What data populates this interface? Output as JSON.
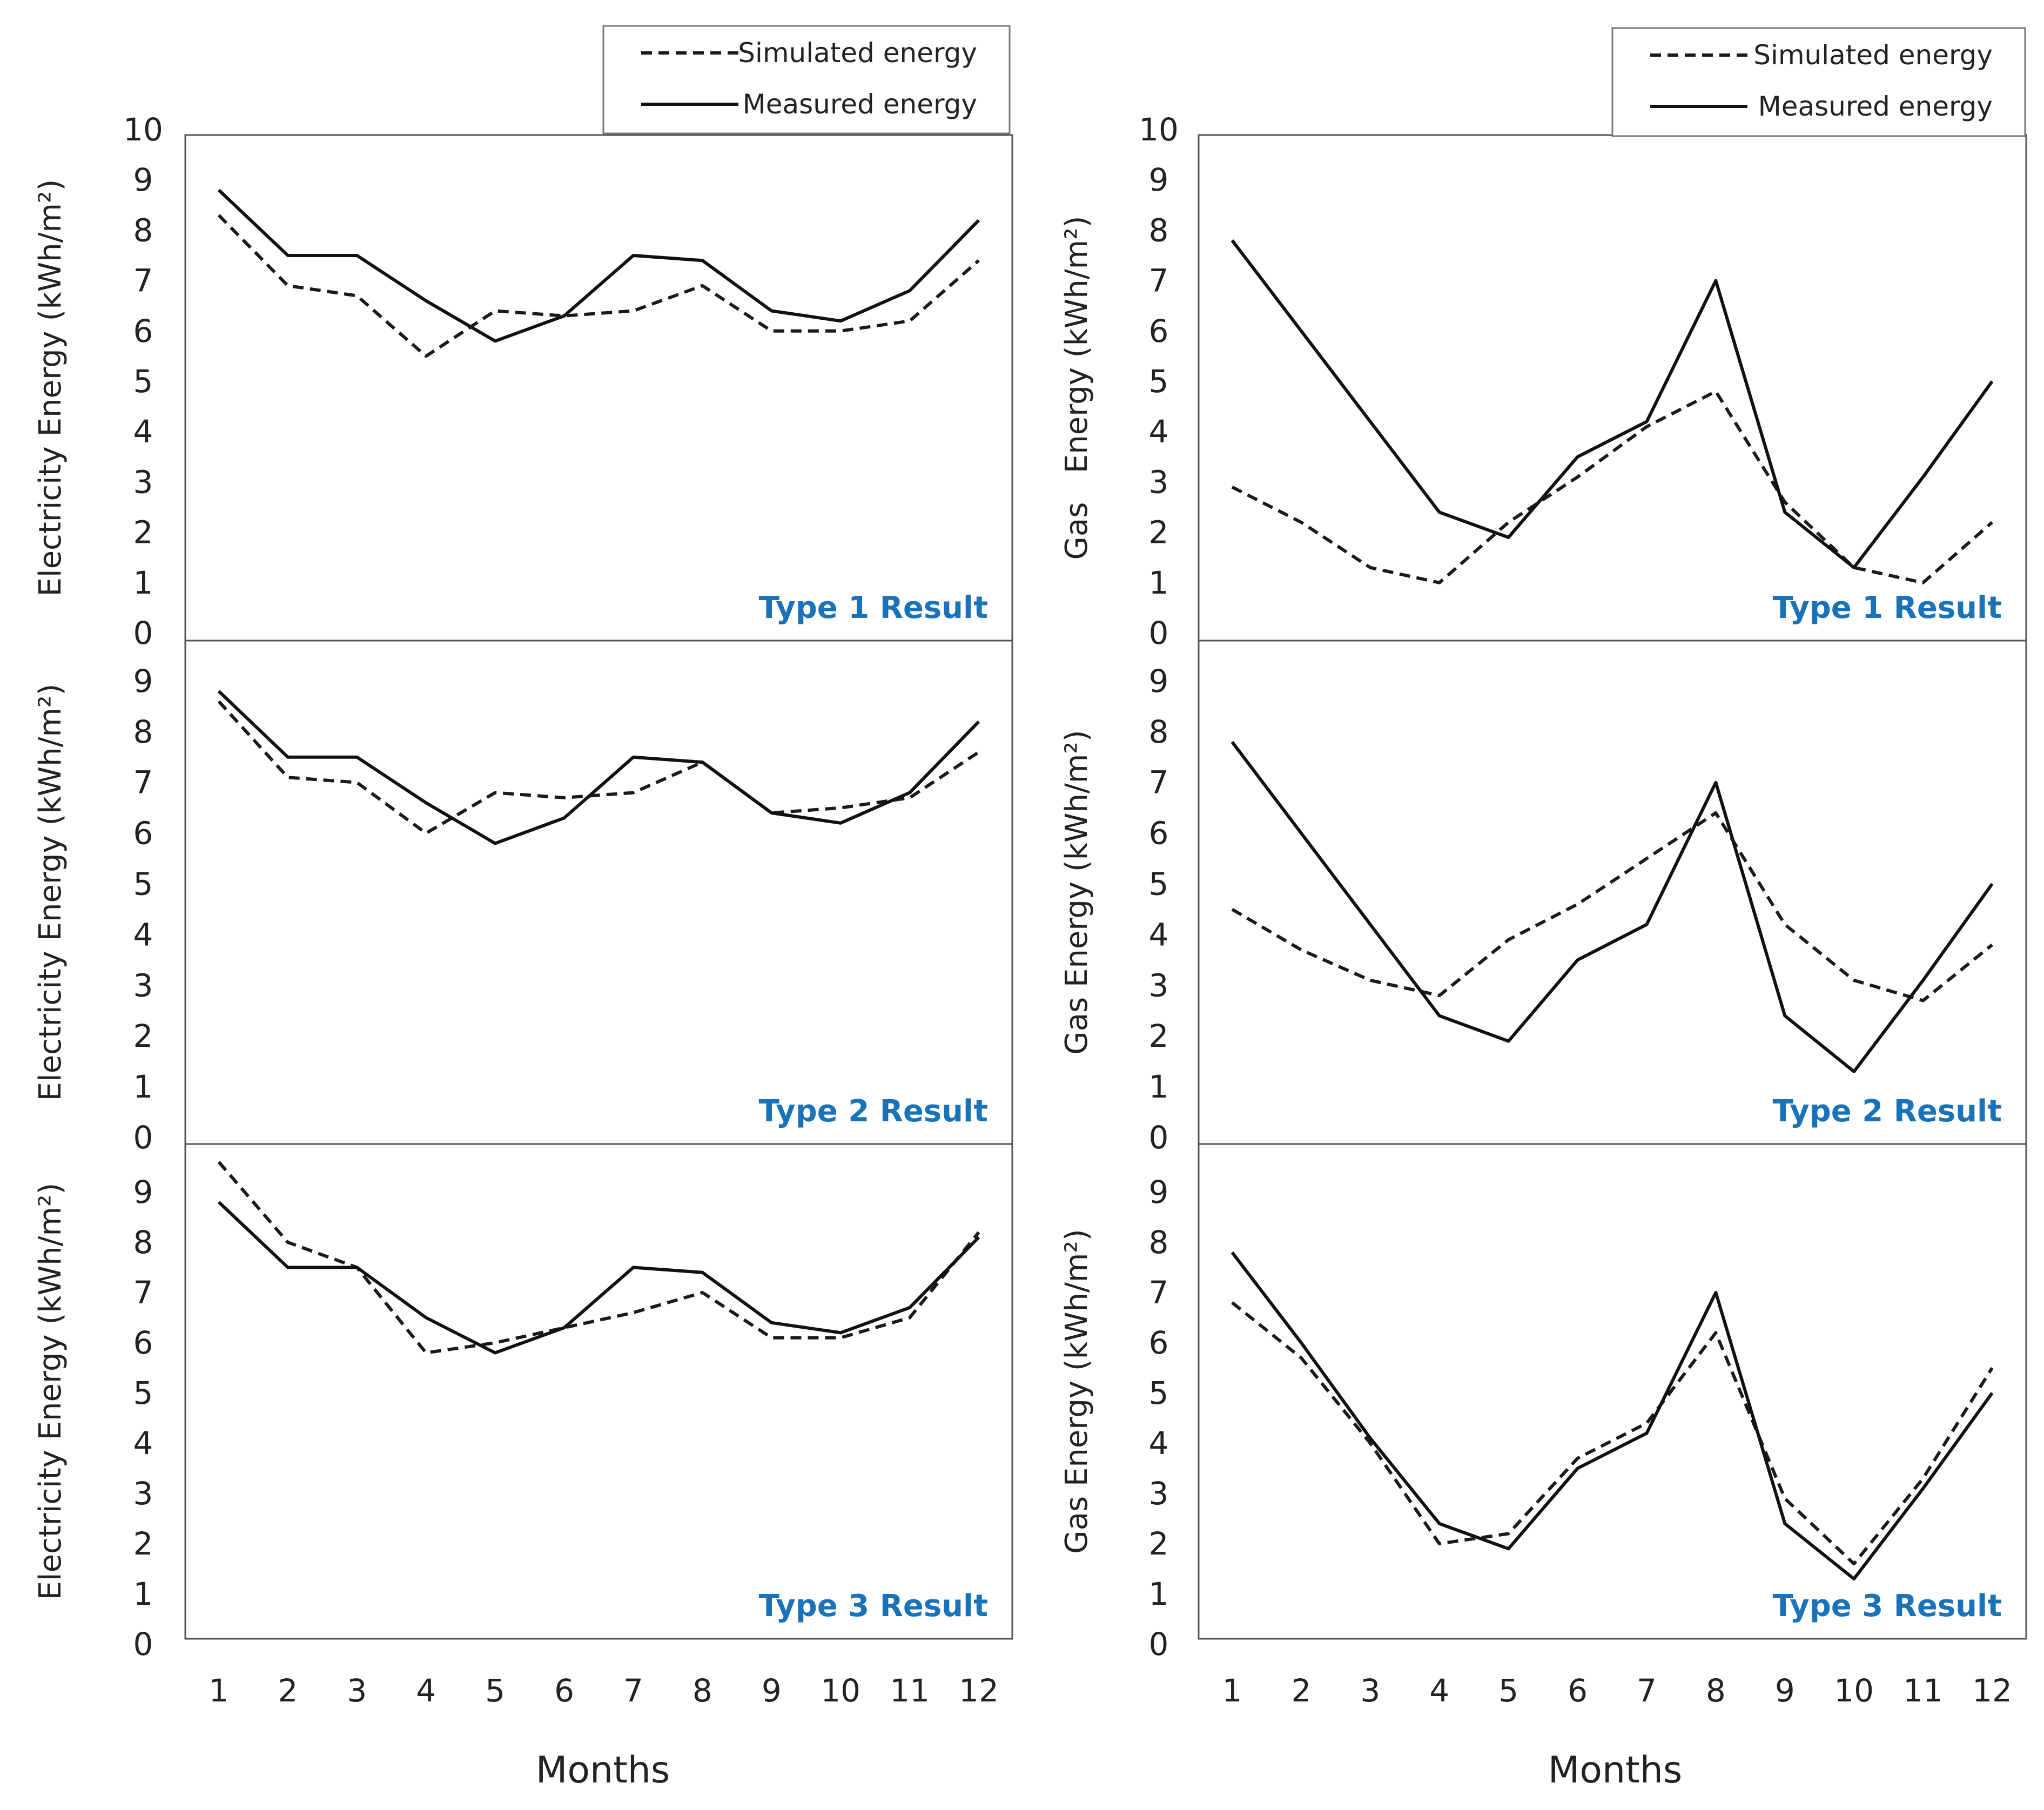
{
  "chart_data": [
    {
      "type": "line",
      "column": "left",
      "row": 1,
      "title": "Type 1 Result",
      "xlabel": "Months",
      "ylabel": "Electricity Energy (kWh/m²)",
      "ylim": [
        0,
        10
      ],
      "yticks": [
        "0",
        "1",
        "2",
        "3",
        "4",
        "5",
        "6",
        "7",
        "8",
        "9",
        "10"
      ],
      "x": [
        1,
        2,
        3,
        4,
        5,
        6,
        7,
        8,
        9,
        10,
        11,
        12
      ],
      "legend": {
        "position": "top-right",
        "simulated": "Simulated energy",
        "measured": "Measured energy"
      },
      "series": [
        {
          "name": "Simulated energy",
          "style": "dashed",
          "values": [
            8.3,
            6.9,
            6.7,
            5.5,
            6.4,
            6.3,
            6.4,
            6.9,
            6.0,
            6.0,
            6.2,
            7.4
          ]
        },
        {
          "name": "Measured energy",
          "style": "solid",
          "values": [
            8.8,
            7.5,
            7.5,
            6.6,
            5.8,
            6.3,
            7.5,
            7.4,
            6.4,
            6.2,
            6.8,
            8.2
          ]
        }
      ]
    },
    {
      "type": "line",
      "column": "left",
      "row": 2,
      "title": "Type 2 Result",
      "ylabel": "Electricity Energy (kWh/m²)",
      "ylim": [
        0,
        10
      ],
      "yticks": [
        "0",
        "1",
        "2",
        "3",
        "4",
        "5",
        "6",
        "7",
        "8",
        "9"
      ],
      "x": [
        1,
        2,
        3,
        4,
        5,
        6,
        7,
        8,
        9,
        10,
        11,
        12
      ],
      "series": [
        {
          "name": "Simulated energy",
          "style": "dashed",
          "values": [
            8.6,
            7.1,
            7.0,
            6.0,
            6.8,
            6.7,
            6.8,
            7.4,
            6.4,
            6.5,
            6.7,
            7.6
          ]
        },
        {
          "name": "Measured energy",
          "style": "solid",
          "values": [
            8.8,
            7.5,
            7.5,
            6.6,
            5.8,
            6.3,
            7.5,
            7.4,
            6.4,
            6.2,
            6.8,
            8.2
          ]
        }
      ]
    },
    {
      "type": "line",
      "column": "left",
      "row": 3,
      "title": "Type 3 Result",
      "ylabel": "Electricity Energy (kWh/m²)",
      "ylim": [
        0,
        10
      ],
      "yticks": [
        "0",
        "1",
        "2",
        "3",
        "4",
        "5",
        "6",
        "7",
        "8",
        "9"
      ],
      "xticks": [
        "1",
        "2",
        "3",
        "4",
        "5",
        "6",
        "7",
        "8",
        "9",
        "10",
        "11",
        "12"
      ],
      "x": [
        1,
        2,
        3,
        4,
        5,
        6,
        7,
        8,
        9,
        10,
        11,
        12
      ],
      "series": [
        {
          "name": "Simulated energy",
          "style": "dashed",
          "values": [
            9.6,
            8.0,
            7.5,
            5.8,
            6.0,
            6.3,
            6.6,
            7.0,
            6.1,
            6.1,
            6.5,
            8.2
          ]
        },
        {
          "name": "Measured energy",
          "style": "solid",
          "values": [
            8.8,
            7.5,
            7.5,
            6.5,
            5.8,
            6.3,
            7.5,
            7.4,
            6.4,
            6.2,
            6.7,
            8.1
          ]
        }
      ]
    },
    {
      "type": "line",
      "column": "right",
      "row": 1,
      "title": "Type 1 Result",
      "xlabel": "Months",
      "ylabel": "Gas   Energy (kWh/m²)",
      "ylim": [
        0,
        10
      ],
      "yticks": [
        "0",
        "1",
        "2",
        "3",
        "4",
        "5",
        "6",
        "7",
        "8",
        "9",
        "10"
      ],
      "x": [
        1,
        2,
        3,
        4,
        5,
        6,
        7,
        8,
        9,
        10,
        11,
        12
      ],
      "legend": {
        "position": "top-right",
        "simulated": "Simulated energy",
        "measured": "Measured energy"
      },
      "series": [
        {
          "name": "Simulated energy",
          "style": "dashed",
          "values": [
            2.9,
            2.2,
            1.3,
            1.0,
            2.2,
            3.1,
            4.1,
            4.8,
            2.6,
            1.3,
            1.0,
            2.2
          ]
        },
        {
          "name": "Measured energy",
          "style": "solid",
          "values": [
            7.8,
            6.0,
            4.2,
            2.4,
            1.9,
            3.5,
            4.2,
            7.0,
            2.4,
            1.3,
            3.1,
            5.0
          ]
        }
      ]
    },
    {
      "type": "line",
      "column": "right",
      "row": 2,
      "title": "Type 2 Result",
      "ylabel": "Gas Energy (kWh/m²)",
      "ylim": [
        0,
        10
      ],
      "yticks": [
        "0",
        "1",
        "2",
        "3",
        "4",
        "5",
        "6",
        "7",
        "8",
        "9"
      ],
      "x": [
        1,
        2,
        3,
        4,
        5,
        6,
        7,
        8,
        9,
        10,
        11,
        12
      ],
      "series": [
        {
          "name": "Simulated energy",
          "style": "dashed",
          "values": [
            4.5,
            3.7,
            3.1,
            2.8,
            3.9,
            4.6,
            5.5,
            6.4,
            4.2,
            3.1,
            2.7,
            3.8
          ]
        },
        {
          "name": "Measured energy",
          "style": "solid",
          "values": [
            7.8,
            6.0,
            4.2,
            2.4,
            1.9,
            3.5,
            4.2,
            7.0,
            2.4,
            1.3,
            3.1,
            5.0
          ]
        }
      ]
    },
    {
      "type": "line",
      "column": "right",
      "row": 3,
      "title": "Type 3 Result",
      "ylabel": "Gas Energy (kWh/m²)",
      "ylim": [
        0,
        10
      ],
      "yticks": [
        "0",
        "1",
        "2",
        "3",
        "4",
        "5",
        "6",
        "7",
        "8",
        "9"
      ],
      "xticks": [
        "1",
        "2",
        "3",
        "4",
        "5",
        "6",
        "7",
        "8",
        "9",
        "10",
        "11",
        "12"
      ],
      "x": [
        1,
        2,
        3,
        4,
        5,
        6,
        7,
        8,
        9,
        10,
        11,
        12
      ],
      "series": [
        {
          "name": "Simulated energy",
          "style": "dashed",
          "values": [
            6.8,
            5.7,
            4.0,
            2.0,
            2.2,
            3.7,
            4.4,
            6.2,
            2.9,
            1.6,
            3.3,
            5.5
          ]
        },
        {
          "name": "Measured energy",
          "style": "solid",
          "values": [
            7.8,
            6.0,
            4.1,
            2.4,
            1.9,
            3.5,
            4.2,
            7.0,
            2.4,
            1.3,
            3.1,
            5.0
          ]
        }
      ]
    }
  ]
}
